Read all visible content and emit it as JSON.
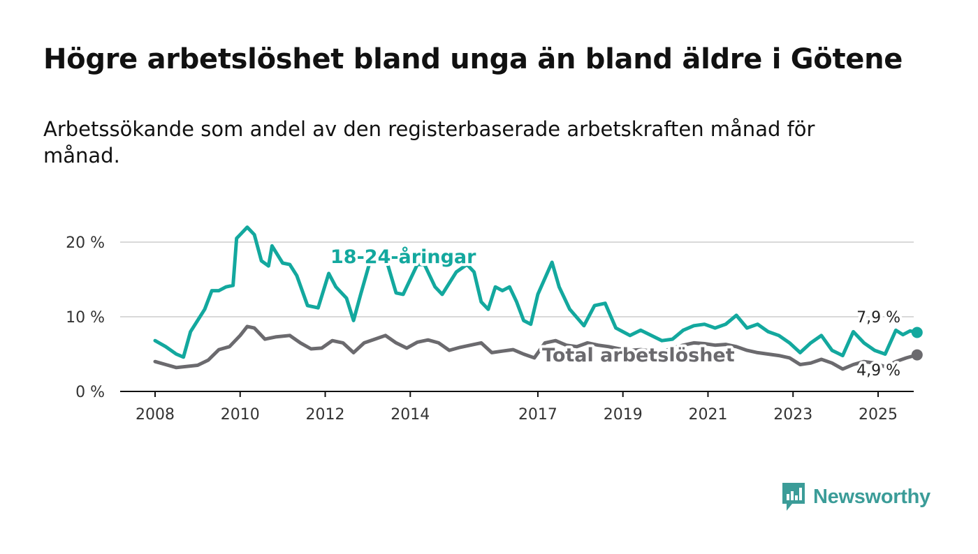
{
  "title": "Högre arbetslöshet bland unga än bland äldre i Götene",
  "subtitle": "Arbetssökande som andel av den registerbaserade arbetskraften månad för månad.",
  "brand": {
    "name": "Newsworthy",
    "color": "#3b9c98"
  },
  "chart_data": {
    "type": "line",
    "xlabel": "",
    "ylabel": "",
    "x_range": [
      "2008-01",
      "2025-01"
    ],
    "ylim": [
      0,
      22
    ],
    "x_ticks": [
      {
        "label": "2008",
        "value": "2008-01"
      },
      {
        "label": "2010",
        "value": "2010-01"
      },
      {
        "label": "2012",
        "value": "2012-01"
      },
      {
        "label": "2014",
        "value": "2014-01"
      },
      {
        "label": "2017",
        "value": "2017-01"
      },
      {
        "label": "2019",
        "value": "2019-01"
      },
      {
        "label": "2021",
        "value": "2021-01"
      },
      {
        "label": "2023",
        "value": "2023-01"
      },
      {
        "label": "2025",
        "value": "2025-01"
      }
    ],
    "y_ticks": [
      {
        "label": "0 %",
        "value": 0
      },
      {
        "label": "10 %",
        "value": 10
      },
      {
        "label": "20 %",
        "value": 20
      }
    ],
    "grid": true,
    "legend": "inline labels",
    "series": [
      {
        "name": "18-24-åringar",
        "color": "#13a89e",
        "end_label": "7,9 %",
        "points": [
          {
            "x": "2008-01",
            "y": 6.8
          },
          {
            "x": "2008-04",
            "y": 6.0
          },
          {
            "x": "2008-07",
            "y": 5.0
          },
          {
            "x": "2008-09",
            "y": 4.6
          },
          {
            "x": "2008-11",
            "y": 8.0
          },
          {
            "x": "2009-03",
            "y": 11.0
          },
          {
            "x": "2009-05",
            "y": 13.5
          },
          {
            "x": "2009-07",
            "y": 13.5
          },
          {
            "x": "2009-09",
            "y": 14.0
          },
          {
            "x": "2009-11",
            "y": 14.2
          },
          {
            "x": "2009-12",
            "y": 20.5
          },
          {
            "x": "2010-01",
            "y": 21.0
          },
          {
            "x": "2010-03",
            "y": 22.0
          },
          {
            "x": "2010-05",
            "y": 21.0
          },
          {
            "x": "2010-07",
            "y": 17.5
          },
          {
            "x": "2010-09",
            "y": 16.8
          },
          {
            "x": "2010-10",
            "y": 19.5
          },
          {
            "x": "2011-01",
            "y": 17.2
          },
          {
            "x": "2011-03",
            "y": 17.0
          },
          {
            "x": "2011-05",
            "y": 15.5
          },
          {
            "x": "2011-08",
            "y": 11.5
          },
          {
            "x": "2011-11",
            "y": 11.2
          },
          {
            "x": "2012-02",
            "y": 15.8
          },
          {
            "x": "2012-04",
            "y": 14.0
          },
          {
            "x": "2012-07",
            "y": 12.5
          },
          {
            "x": "2012-09",
            "y": 9.5
          },
          {
            "x": "2012-11",
            "y": 13.0
          },
          {
            "x": "2013-02",
            "y": 18.0
          },
          {
            "x": "2013-06",
            "y": 18.0
          },
          {
            "x": "2013-09",
            "y": 13.2
          },
          {
            "x": "2013-11",
            "y": 13.0
          },
          {
            "x": "2014-03",
            "y": 17.0
          },
          {
            "x": "2014-05",
            "y": 17.0
          },
          {
            "x": "2014-08",
            "y": 14.0
          },
          {
            "x": "2014-10",
            "y": 13.0
          },
          {
            "x": "2015-02",
            "y": 16.0
          },
          {
            "x": "2015-05",
            "y": 17.0
          },
          {
            "x": "2015-07",
            "y": 16.0
          },
          {
            "x": "2015-09",
            "y": 12.0
          },
          {
            "x": "2015-11",
            "y": 11.0
          },
          {
            "x": "2016-01",
            "y": 14.0
          },
          {
            "x": "2016-03",
            "y": 13.5
          },
          {
            "x": "2016-05",
            "y": 14.0
          },
          {
            "x": "2016-07",
            "y": 12.0
          },
          {
            "x": "2016-09",
            "y": 9.5
          },
          {
            "x": "2016-11",
            "y": 9.0
          },
          {
            "x": "2017-01",
            "y": 13.0
          },
          {
            "x": "2017-05",
            "y": 17.3
          },
          {
            "x": "2017-07",
            "y": 14.0
          },
          {
            "x": "2017-10",
            "y": 11.0
          },
          {
            "x": "2018-02",
            "y": 8.8
          },
          {
            "x": "2018-05",
            "y": 11.5
          },
          {
            "x": "2018-08",
            "y": 11.8
          },
          {
            "x": "2018-11",
            "y": 8.5
          },
          {
            "x": "2019-03",
            "y": 7.5
          },
          {
            "x": "2019-06",
            "y": 8.2
          },
          {
            "x": "2019-09",
            "y": 7.5
          },
          {
            "x": "2019-12",
            "y": 6.8
          },
          {
            "x": "2020-03",
            "y": 7.0
          },
          {
            "x": "2020-06",
            "y": 8.2
          },
          {
            "x": "2020-09",
            "y": 8.8
          },
          {
            "x": "2020-12",
            "y": 9.0
          },
          {
            "x": "2021-03",
            "y": 8.5
          },
          {
            "x": "2021-06",
            "y": 9.0
          },
          {
            "x": "2021-09",
            "y": 10.2
          },
          {
            "x": "2021-12",
            "y": 8.5
          },
          {
            "x": "2022-03",
            "y": 9.0
          },
          {
            "x": "2022-06",
            "y": 8.0
          },
          {
            "x": "2022-09",
            "y": 7.5
          },
          {
            "x": "2022-12",
            "y": 6.5
          },
          {
            "x": "2023-03",
            "y": 5.2
          },
          {
            "x": "2023-06",
            "y": 6.5
          },
          {
            "x": "2023-09",
            "y": 7.5
          },
          {
            "x": "2023-12",
            "y": 5.5
          },
          {
            "x": "2024-03",
            "y": 4.8
          },
          {
            "x": "2024-06",
            "y": 8.0
          },
          {
            "x": "2024-09",
            "y": 6.5
          },
          {
            "x": "2024-12",
            "y": 5.5
          },
          {
            "x": "2025-03",
            "y": 5.0
          },
          {
            "x": "2025-06",
            "y": 8.2
          },
          {
            "x": "2025-08",
            "y": 7.6
          },
          {
            "x": "2025-10",
            "y": 8.1
          },
          {
            "x": "2025-12",
            "y": 7.9
          }
        ]
      },
      {
        "name": "Total arbetslöshet",
        "color": "#6b6a6e",
        "end_label": "4,9 %",
        "points": [
          {
            "x": "2008-01",
            "y": 4.0
          },
          {
            "x": "2008-04",
            "y": 3.6
          },
          {
            "x": "2008-07",
            "y": 3.2
          },
          {
            "x": "2009-01",
            "y": 3.5
          },
          {
            "x": "2009-04",
            "y": 4.2
          },
          {
            "x": "2009-07",
            "y": 5.6
          },
          {
            "x": "2009-10",
            "y": 6.0
          },
          {
            "x": "2010-01",
            "y": 7.5
          },
          {
            "x": "2010-03",
            "y": 8.7
          },
          {
            "x": "2010-05",
            "y": 8.5
          },
          {
            "x": "2010-08",
            "y": 7.0
          },
          {
            "x": "2010-11",
            "y": 7.3
          },
          {
            "x": "2011-03",
            "y": 7.5
          },
          {
            "x": "2011-06",
            "y": 6.5
          },
          {
            "x": "2011-09",
            "y": 5.7
          },
          {
            "x": "2011-12",
            "y": 5.8
          },
          {
            "x": "2012-03",
            "y": 6.8
          },
          {
            "x": "2012-06",
            "y": 6.5
          },
          {
            "x": "2012-09",
            "y": 5.2
          },
          {
            "x": "2012-12",
            "y": 6.5
          },
          {
            "x": "2013-03",
            "y": 7.0
          },
          {
            "x": "2013-06",
            "y": 7.5
          },
          {
            "x": "2013-09",
            "y": 6.5
          },
          {
            "x": "2013-12",
            "y": 5.8
          },
          {
            "x": "2014-03",
            "y": 6.6
          },
          {
            "x": "2014-06",
            "y": 6.9
          },
          {
            "x": "2014-09",
            "y": 6.5
          },
          {
            "x": "2014-12",
            "y": 5.5
          },
          {
            "x": "2015-03",
            "y": 5.9
          },
          {
            "x": "2015-06",
            "y": 6.2
          },
          {
            "x": "2015-09",
            "y": 6.5
          },
          {
            "x": "2015-12",
            "y": 5.2
          },
          {
            "x": "2016-03",
            "y": 5.4
          },
          {
            "x": "2016-06",
            "y": 5.6
          },
          {
            "x": "2016-09",
            "y": 5.0
          },
          {
            "x": "2016-12",
            "y": 4.5
          },
          {
            "x": "2017-03",
            "y": 6.5
          },
          {
            "x": "2017-06",
            "y": 6.8
          },
          {
            "x": "2017-09",
            "y": 6.2
          },
          {
            "x": "2017-12",
            "y": 6.0
          },
          {
            "x": "2018-03",
            "y": 6.5
          },
          {
            "x": "2018-06",
            "y": 6.2
          },
          {
            "x": "2018-09",
            "y": 6.0
          },
          {
            "x": "2018-12",
            "y": 5.7
          },
          {
            "x": "2019-03",
            "y": 5.5
          },
          {
            "x": "2019-06",
            "y": 5.6
          },
          {
            "x": "2019-09",
            "y": 5.4
          },
          {
            "x": "2019-12",
            "y": 5.3
          },
          {
            "x": "2020-03",
            "y": 5.8
          },
          {
            "x": "2020-06",
            "y": 6.2
          },
          {
            "x": "2020-09",
            "y": 6.5
          },
          {
            "x": "2020-12",
            "y": 6.4
          },
          {
            "x": "2021-03",
            "y": 6.2
          },
          {
            "x": "2021-06",
            "y": 6.3
          },
          {
            "x": "2021-09",
            "y": 6.0
          },
          {
            "x": "2021-12",
            "y": 5.5
          },
          {
            "x": "2022-03",
            "y": 5.2
          },
          {
            "x": "2022-06",
            "y": 5.0
          },
          {
            "x": "2022-09",
            "y": 4.8
          },
          {
            "x": "2022-12",
            "y": 4.5
          },
          {
            "x": "2023-03",
            "y": 3.6
          },
          {
            "x": "2023-06",
            "y": 3.8
          },
          {
            "x": "2023-09",
            "y": 4.3
          },
          {
            "x": "2023-12",
            "y": 3.8
          },
          {
            "x": "2024-03",
            "y": 3.0
          },
          {
            "x": "2024-06",
            "y": 3.6
          },
          {
            "x": "2024-09",
            "y": 4.0
          },
          {
            "x": "2024-12",
            "y": 3.8
          },
          {
            "x": "2025-03",
            "y": 3.3
          },
          {
            "x": "2025-06",
            "y": 4.0
          },
          {
            "x": "2025-09",
            "y": 4.5
          },
          {
            "x": "2025-12",
            "y": 4.9
          }
        ]
      }
    ]
  }
}
